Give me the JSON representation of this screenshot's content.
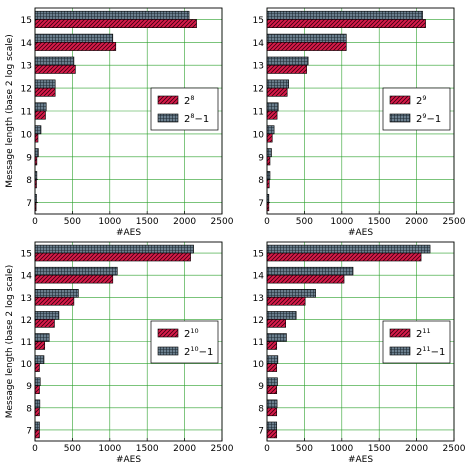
{
  "figure": {
    "ylabel": "Message length (base 2 log scale)",
    "xlabel": "#AES"
  },
  "colors": {
    "red_fill": "#d81b4a",
    "gray_fill": "#6b7f8e",
    "grid": "#2ca02c"
  },
  "chart_data": [
    {
      "type": "bar",
      "orientation": "horizontal",
      "categories": [
        "7",
        "8",
        "9",
        "10",
        "11",
        "12",
        "13",
        "14",
        "15"
      ],
      "series": [
        {
          "name": "2^8",
          "label_base": "2",
          "label_exp": "8",
          "label_suffix": "",
          "values": [
            15,
            20,
            25,
            40,
            140,
            270,
            540,
            1080,
            2160
          ]
        },
        {
          "name": "2^8 -1",
          "label_base": "2",
          "label_exp": "8",
          "label_suffix": "−1",
          "values": [
            20,
            25,
            45,
            80,
            150,
            270,
            520,
            1040,
            2060
          ]
        }
      ],
      "xlim": [
        0,
        2500
      ],
      "xticks": [
        "0",
        "500",
        "1000",
        "1500",
        "2000",
        "2500"
      ],
      "xlabel": "#AES",
      "ylabel": "Message length (base 2 log scale)",
      "grid": true,
      "legend_position": "right"
    },
    {
      "type": "bar",
      "orientation": "horizontal",
      "categories": [
        "7",
        "8",
        "9",
        "10",
        "11",
        "12",
        "13",
        "14",
        "15"
      ],
      "series": [
        {
          "name": "2^9",
          "label_base": "2",
          "label_exp": "9",
          "label_suffix": "",
          "values": [
            25,
            30,
            40,
            70,
            135,
            270,
            530,
            1060,
            2120
          ]
        },
        {
          "name": "2^9 -1",
          "label_base": "2",
          "label_exp": "9",
          "label_suffix": "−1",
          "values": [
            25,
            40,
            60,
            95,
            150,
            290,
            550,
            1060,
            2080
          ]
        }
      ],
      "xlim": [
        0,
        2500
      ],
      "xticks": [
        "0",
        "500",
        "1000",
        "1500",
        "2000",
        "2500"
      ],
      "xlabel": "#AES",
      "ylabel": "",
      "grid": true,
      "legend_position": "right"
    },
    {
      "type": "bar",
      "orientation": "horizontal",
      "categories": [
        "7",
        "8",
        "9",
        "10",
        "11",
        "12",
        "13",
        "14",
        "15"
      ],
      "series": [
        {
          "name": "2^10",
          "label_base": "2",
          "label_exp": "10",
          "label_suffix": "",
          "values": [
            60,
            60,
            60,
            60,
            130,
            260,
            520,
            1040,
            2080
          ]
        },
        {
          "name": "2^10 -1",
          "label_base": "2",
          "label_exp": "10",
          "label_suffix": "−1",
          "values": [
            60,
            65,
            70,
            120,
            190,
            320,
            580,
            1100,
            2120
          ]
        }
      ],
      "xlim": [
        0,
        2500
      ],
      "xticks": [
        "0",
        "500",
        "1000",
        "1500",
        "2000",
        "2500"
      ],
      "xlabel": "#AES",
      "ylabel": "Message length (base 2 log scale)",
      "grid": true,
      "legend_position": "right"
    },
    {
      "type": "bar",
      "orientation": "horizontal",
      "categories": [
        "7",
        "8",
        "9",
        "10",
        "11",
        "12",
        "13",
        "14",
        "15"
      ],
      "series": [
        {
          "name": "2^11",
          "label_base": "2",
          "label_exp": "11",
          "label_suffix": "",
          "values": [
            130,
            130,
            130,
            130,
            130,
            250,
            510,
            1030,
            2060
          ]
        },
        {
          "name": "2^11 -1",
          "label_base": "2",
          "label_exp": "11",
          "label_suffix": "−1",
          "values": [
            130,
            135,
            140,
            145,
            260,
            390,
            650,
            1150,
            2180
          ]
        }
      ],
      "xlim": [
        0,
        2500
      ],
      "xticks": [
        "0",
        "500",
        "1000",
        "1500",
        "2000",
        "2500"
      ],
      "xlabel": "#AES",
      "ylabel": "",
      "grid": true,
      "legend_position": "right"
    }
  ]
}
